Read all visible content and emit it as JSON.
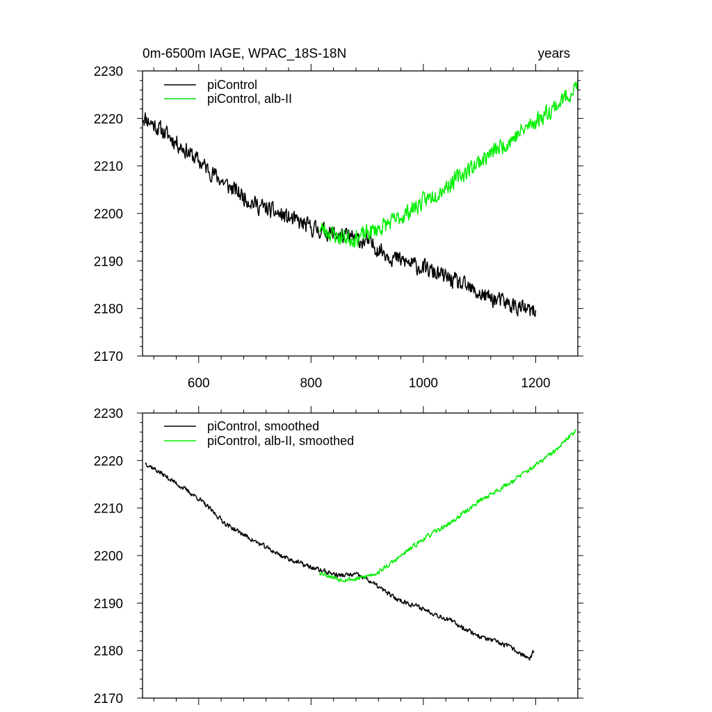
{
  "chart_data": [
    {
      "type": "line",
      "title": "0m-6500m IAGE, WPAC_18S-18N",
      "units_label": "years",
      "xlim": [
        500,
        1275
      ],
      "ylim": [
        2170,
        2230
      ],
      "x_ticks": [
        600,
        800,
        1000,
        1200
      ],
      "y_ticks": [
        2170,
        2180,
        2190,
        2200,
        2210,
        2220,
        2230
      ],
      "show_x_tick_labels": true,
      "legend_position": "top-left",
      "series": [
        {
          "name": "piControl",
          "color": "#000000",
          "x_start": 500,
          "x_end": 1200,
          "points": [
            [
              500,
              2220.5
            ],
            [
              550,
              2216
            ],
            [
              600,
              2211
            ],
            [
              650,
              2206
            ],
            [
              700,
              2202
            ],
            [
              750,
              2199.5
            ],
            [
              800,
              2197
            ],
            [
              850,
              2195.5
            ],
            [
              900,
              2194
            ],
            [
              950,
              2190.5
            ],
            [
              1000,
              2188.5
            ],
            [
              1050,
              2186
            ],
            [
              1100,
              2183
            ],
            [
              1150,
              2181
            ],
            [
              1200,
              2179
            ]
          ],
          "noise": 1.6,
          "seed": 11
        },
        {
          "name": "piControl, alb-II",
          "color": "#00ee00",
          "x_start": 815,
          "x_end": 1275,
          "points": [
            [
              815,
              2197
            ],
            [
              850,
              2195
            ],
            [
              880,
              2194.8
            ],
            [
              900,
              2195.8
            ],
            [
              950,
              2198.5
            ],
            [
              1000,
              2202.5
            ],
            [
              1050,
              2206.5
            ],
            [
              1100,
              2211
            ],
            [
              1150,
              2215
            ],
            [
              1200,
              2219.5
            ],
            [
              1240,
              2223
            ],
            [
              1275,
              2227
            ]
          ],
          "noise": 1.6,
          "seed": 23
        }
      ]
    },
    {
      "type": "line",
      "title": "",
      "xlim": [
        500,
        1275
      ],
      "ylim": [
        2170,
        2230
      ],
      "x_ticks": [
        600,
        800,
        1000,
        1200
      ],
      "y_ticks": [
        2170,
        2180,
        2190,
        2200,
        2210,
        2220,
        2230
      ],
      "show_x_tick_labels": false,
      "legend_position": "top-left",
      "series": [
        {
          "name": "piControl, smoothed",
          "color": "#000000",
          "x_start": 505,
          "x_end": 1197,
          "points": [
            [
              505,
              2219.5
            ],
            [
              550,
              2216
            ],
            [
              600,
              2212
            ],
            [
              650,
              2206.5
            ],
            [
              700,
              2203
            ],
            [
              750,
              2199.8
            ],
            [
              800,
              2197.5
            ],
            [
              850,
              2195.8
            ],
            [
              880,
              2196
            ],
            [
              900,
              2195
            ],
            [
              950,
              2191
            ],
            [
              1000,
              2188.8
            ],
            [
              1050,
              2186.2
            ],
            [
              1100,
              2183
            ],
            [
              1150,
              2181
            ],
            [
              1190,
              2178.2
            ],
            [
              1197,
              2180
            ]
          ],
          "noise": 0.45,
          "seed": 37
        },
        {
          "name": "piControl, alb-II, smoothed",
          "color": "#00ee00",
          "x_start": 815,
          "x_end": 1272,
          "points": [
            [
              815,
              2196.5
            ],
            [
              850,
              2195
            ],
            [
              880,
              2195
            ],
            [
              895,
              2195.5
            ],
            [
              920,
              2196.5
            ],
            [
              950,
              2199
            ],
            [
              1000,
              2203.5
            ],
            [
              1050,
              2207
            ],
            [
              1100,
              2211.5
            ],
            [
              1150,
              2215
            ],
            [
              1200,
              2219
            ],
            [
              1240,
              2222.5
            ],
            [
              1272,
              2226.5
            ]
          ],
          "noise": 0.45,
          "seed": 53
        }
      ]
    }
  ]
}
